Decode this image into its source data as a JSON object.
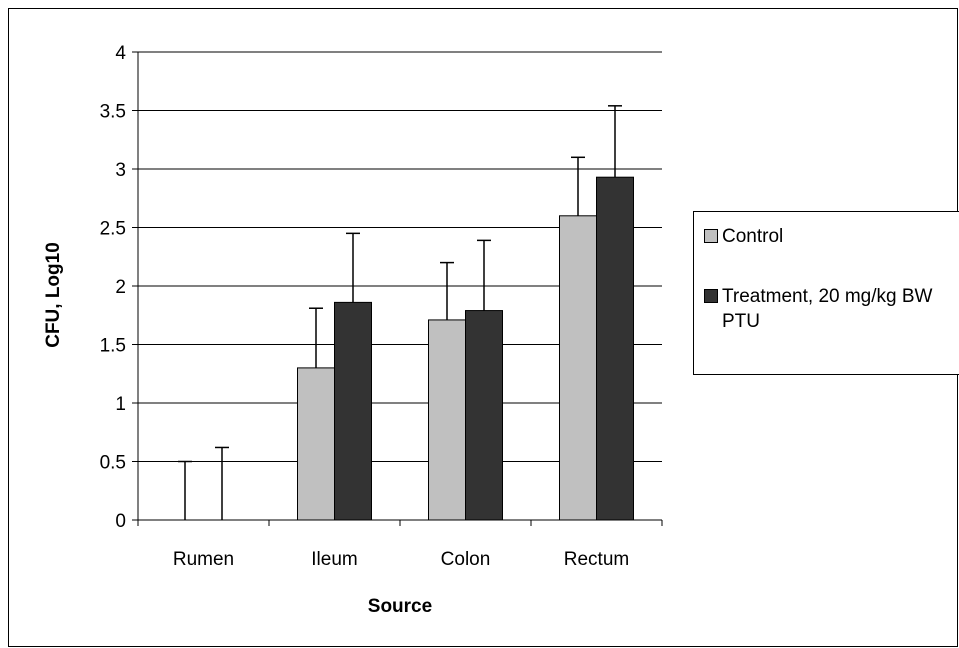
{
  "chart_data": {
    "type": "bar",
    "categories": [
      "Rumen",
      "Ileum",
      "Colon",
      "Rectum"
    ],
    "series": [
      {
        "name": "Control",
        "color": "#c0c0c0",
        "values": [
          0,
          1.3,
          1.71,
          2.6
        ],
        "error": [
          0.5,
          0.51,
          0.49,
          0.5
        ]
      },
      {
        "name": "Treatment, 20 mg/kg BW PTU",
        "color": "#333333",
        "values": [
          0,
          1.86,
          1.79,
          2.93
        ],
        "error": [
          0.62,
          0.59,
          0.6,
          0.61
        ]
      }
    ],
    "xlabel": "Source",
    "ylabel": "CFU, Log10",
    "ylim": [
      0,
      4
    ],
    "yticks": [
      "0",
      "0.5",
      "1",
      "1.5",
      "2",
      "2.5",
      "3",
      "3.5",
      "4"
    ],
    "grid": true,
    "legend_position": "right"
  }
}
